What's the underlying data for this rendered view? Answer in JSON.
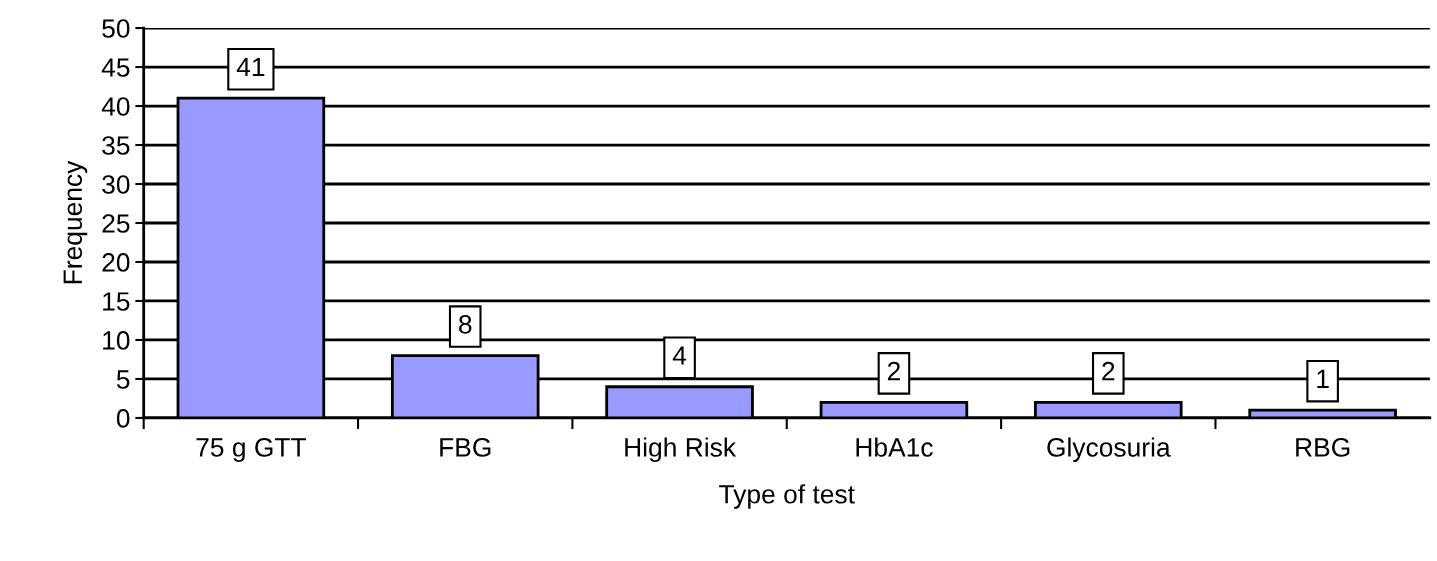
{
  "chart_data": {
    "type": "bar",
    "xlabel": "Type of test",
    "ylabel": "Frequency",
    "categories": [
      "75 g GTT",
      "FBG",
      "High Risk",
      "HbA1c",
      "Glycosuria",
      "RBG"
    ],
    "values": [
      41,
      8,
      4,
      2,
      2,
      1
    ],
    "color": "#9999ff",
    "ylim": [
      0,
      50
    ],
    "yticks": [
      0,
      5,
      10,
      15,
      20,
      25,
      30,
      35,
      40,
      45,
      50
    ],
    "grid": "y",
    "data_labels": true
  }
}
